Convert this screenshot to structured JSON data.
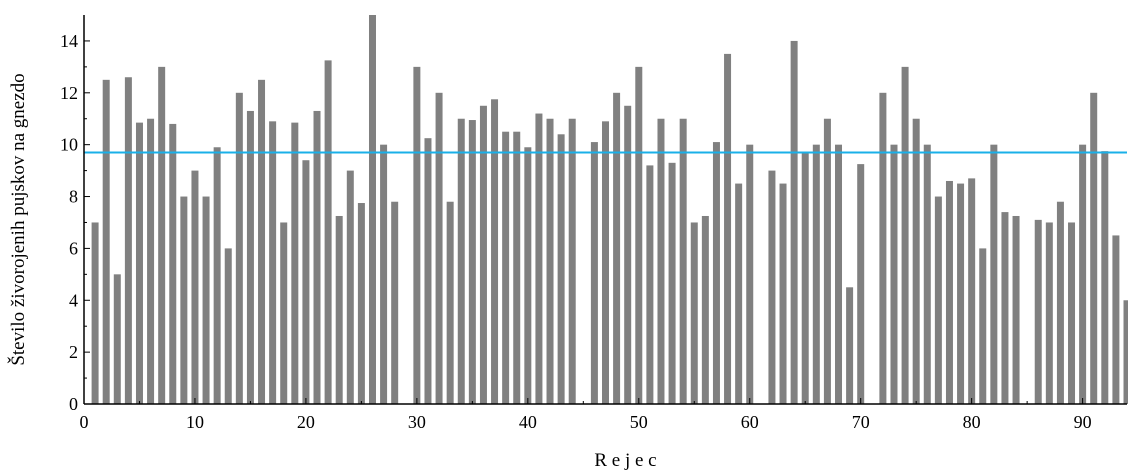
{
  "chart_data": {
    "type": "bar",
    "xlabel": "R e j e c",
    "ylabel": "Število živorojenih pujskov na gnezdo",
    "xlim": [
      0,
      94
    ],
    "ylim": [
      0,
      15
    ],
    "x_ticks": [
      0,
      10,
      20,
      30,
      40,
      50,
      60,
      70,
      80,
      90
    ],
    "y_ticks": [
      0,
      2,
      4,
      6,
      8,
      10,
      12,
      14
    ],
    "grid": false,
    "bar_color": "#808080",
    "reference_line": {
      "value": 9.7,
      "color": "#1ab0e8"
    },
    "points": [
      {
        "x": 1,
        "y": 7.0
      },
      {
        "x": 2,
        "y": 12.5
      },
      {
        "x": 3,
        "y": 5.0
      },
      {
        "x": 4,
        "y": 12.6
      },
      {
        "x": 5,
        "y": 10.85
      },
      {
        "x": 6,
        "y": 11.0
      },
      {
        "x": 7,
        "y": 13.0
      },
      {
        "x": 8,
        "y": 10.8
      },
      {
        "x": 9,
        "y": 8.0
      },
      {
        "x": 10,
        "y": 9.0
      },
      {
        "x": 11,
        "y": 8.0
      },
      {
        "x": 12,
        "y": 9.9
      },
      {
        "x": 13,
        "y": 6.0
      },
      {
        "x": 14,
        "y": 12.0
      },
      {
        "x": 15,
        "y": 11.3
      },
      {
        "x": 16,
        "y": 12.5
      },
      {
        "x": 17,
        "y": 10.9
      },
      {
        "x": 18,
        "y": 7.0
      },
      {
        "x": 19,
        "y": 10.85
      },
      {
        "x": 20,
        "y": 9.4
      },
      {
        "x": 21,
        "y": 11.3
      },
      {
        "x": 22,
        "y": 13.25
      },
      {
        "x": 23,
        "y": 7.25
      },
      {
        "x": 24,
        "y": 9.0
      },
      {
        "x": 25,
        "y": 7.75
      },
      {
        "x": 26,
        "y": 15.0
      },
      {
        "x": 27,
        "y": 10.0
      },
      {
        "x": 28,
        "y": 7.8
      },
      {
        "x": 30,
        "y": 13.0
      },
      {
        "x": 31,
        "y": 10.25
      },
      {
        "x": 32,
        "y": 12.0
      },
      {
        "x": 33,
        "y": 7.8
      },
      {
        "x": 34,
        "y": 11.0
      },
      {
        "x": 35,
        "y": 10.95
      },
      {
        "x": 36,
        "y": 11.5
      },
      {
        "x": 37,
        "y": 11.75
      },
      {
        "x": 38,
        "y": 10.5
      },
      {
        "x": 39,
        "y": 10.5
      },
      {
        "x": 40,
        "y": 9.9
      },
      {
        "x": 41,
        "y": 11.2
      },
      {
        "x": 42,
        "y": 11.0
      },
      {
        "x": 43,
        "y": 10.4
      },
      {
        "x": 44,
        "y": 11.0
      },
      {
        "x": 46,
        "y": 10.1
      },
      {
        "x": 47,
        "y": 10.9
      },
      {
        "x": 48,
        "y": 12.0
      },
      {
        "x": 49,
        "y": 11.5
      },
      {
        "x": 50,
        "y": 13.0
      },
      {
        "x": 51,
        "y": 9.2
      },
      {
        "x": 52,
        "y": 11.0
      },
      {
        "x": 53,
        "y": 9.3
      },
      {
        "x": 54,
        "y": 11.0
      },
      {
        "x": 55,
        "y": 7.0
      },
      {
        "x": 56,
        "y": 7.25
      },
      {
        "x": 57,
        "y": 10.1
      },
      {
        "x": 58,
        "y": 13.5
      },
      {
        "x": 59,
        "y": 8.5
      },
      {
        "x": 60,
        "y": 10.0
      },
      {
        "x": 62,
        "y": 9.0
      },
      {
        "x": 63,
        "y": 8.5
      },
      {
        "x": 64,
        "y": 14.0
      },
      {
        "x": 65,
        "y": 9.7
      },
      {
        "x": 66,
        "y": 10.0
      },
      {
        "x": 67,
        "y": 11.0
      },
      {
        "x": 68,
        "y": 10.0
      },
      {
        "x": 69,
        "y": 4.5
      },
      {
        "x": 70,
        "y": 9.25
      },
      {
        "x": 72,
        "y": 12.0
      },
      {
        "x": 73,
        "y": 10.0
      },
      {
        "x": 74,
        "y": 13.0
      },
      {
        "x": 75,
        "y": 11.0
      },
      {
        "x": 76,
        "y": 10.0
      },
      {
        "x": 77,
        "y": 8.0
      },
      {
        "x": 78,
        "y": 8.6
      },
      {
        "x": 79,
        "y": 8.5
      },
      {
        "x": 80,
        "y": 8.7
      },
      {
        "x": 81,
        "y": 6.0
      },
      {
        "x": 82,
        "y": 10.0
      },
      {
        "x": 83,
        "y": 7.4
      },
      {
        "x": 84,
        "y": 7.25
      },
      {
        "x": 86,
        "y": 7.1
      },
      {
        "x": 87,
        "y": 7.0
      },
      {
        "x": 88,
        "y": 7.8
      },
      {
        "x": 89,
        "y": 7.0
      },
      {
        "x": 90,
        "y": 10.0
      },
      {
        "x": 91,
        "y": 12.0
      },
      {
        "x": 92,
        "y": 9.75
      },
      {
        "x": 93,
        "y": 6.5
      },
      {
        "x": 94,
        "y": 4.0
      }
    ]
  }
}
